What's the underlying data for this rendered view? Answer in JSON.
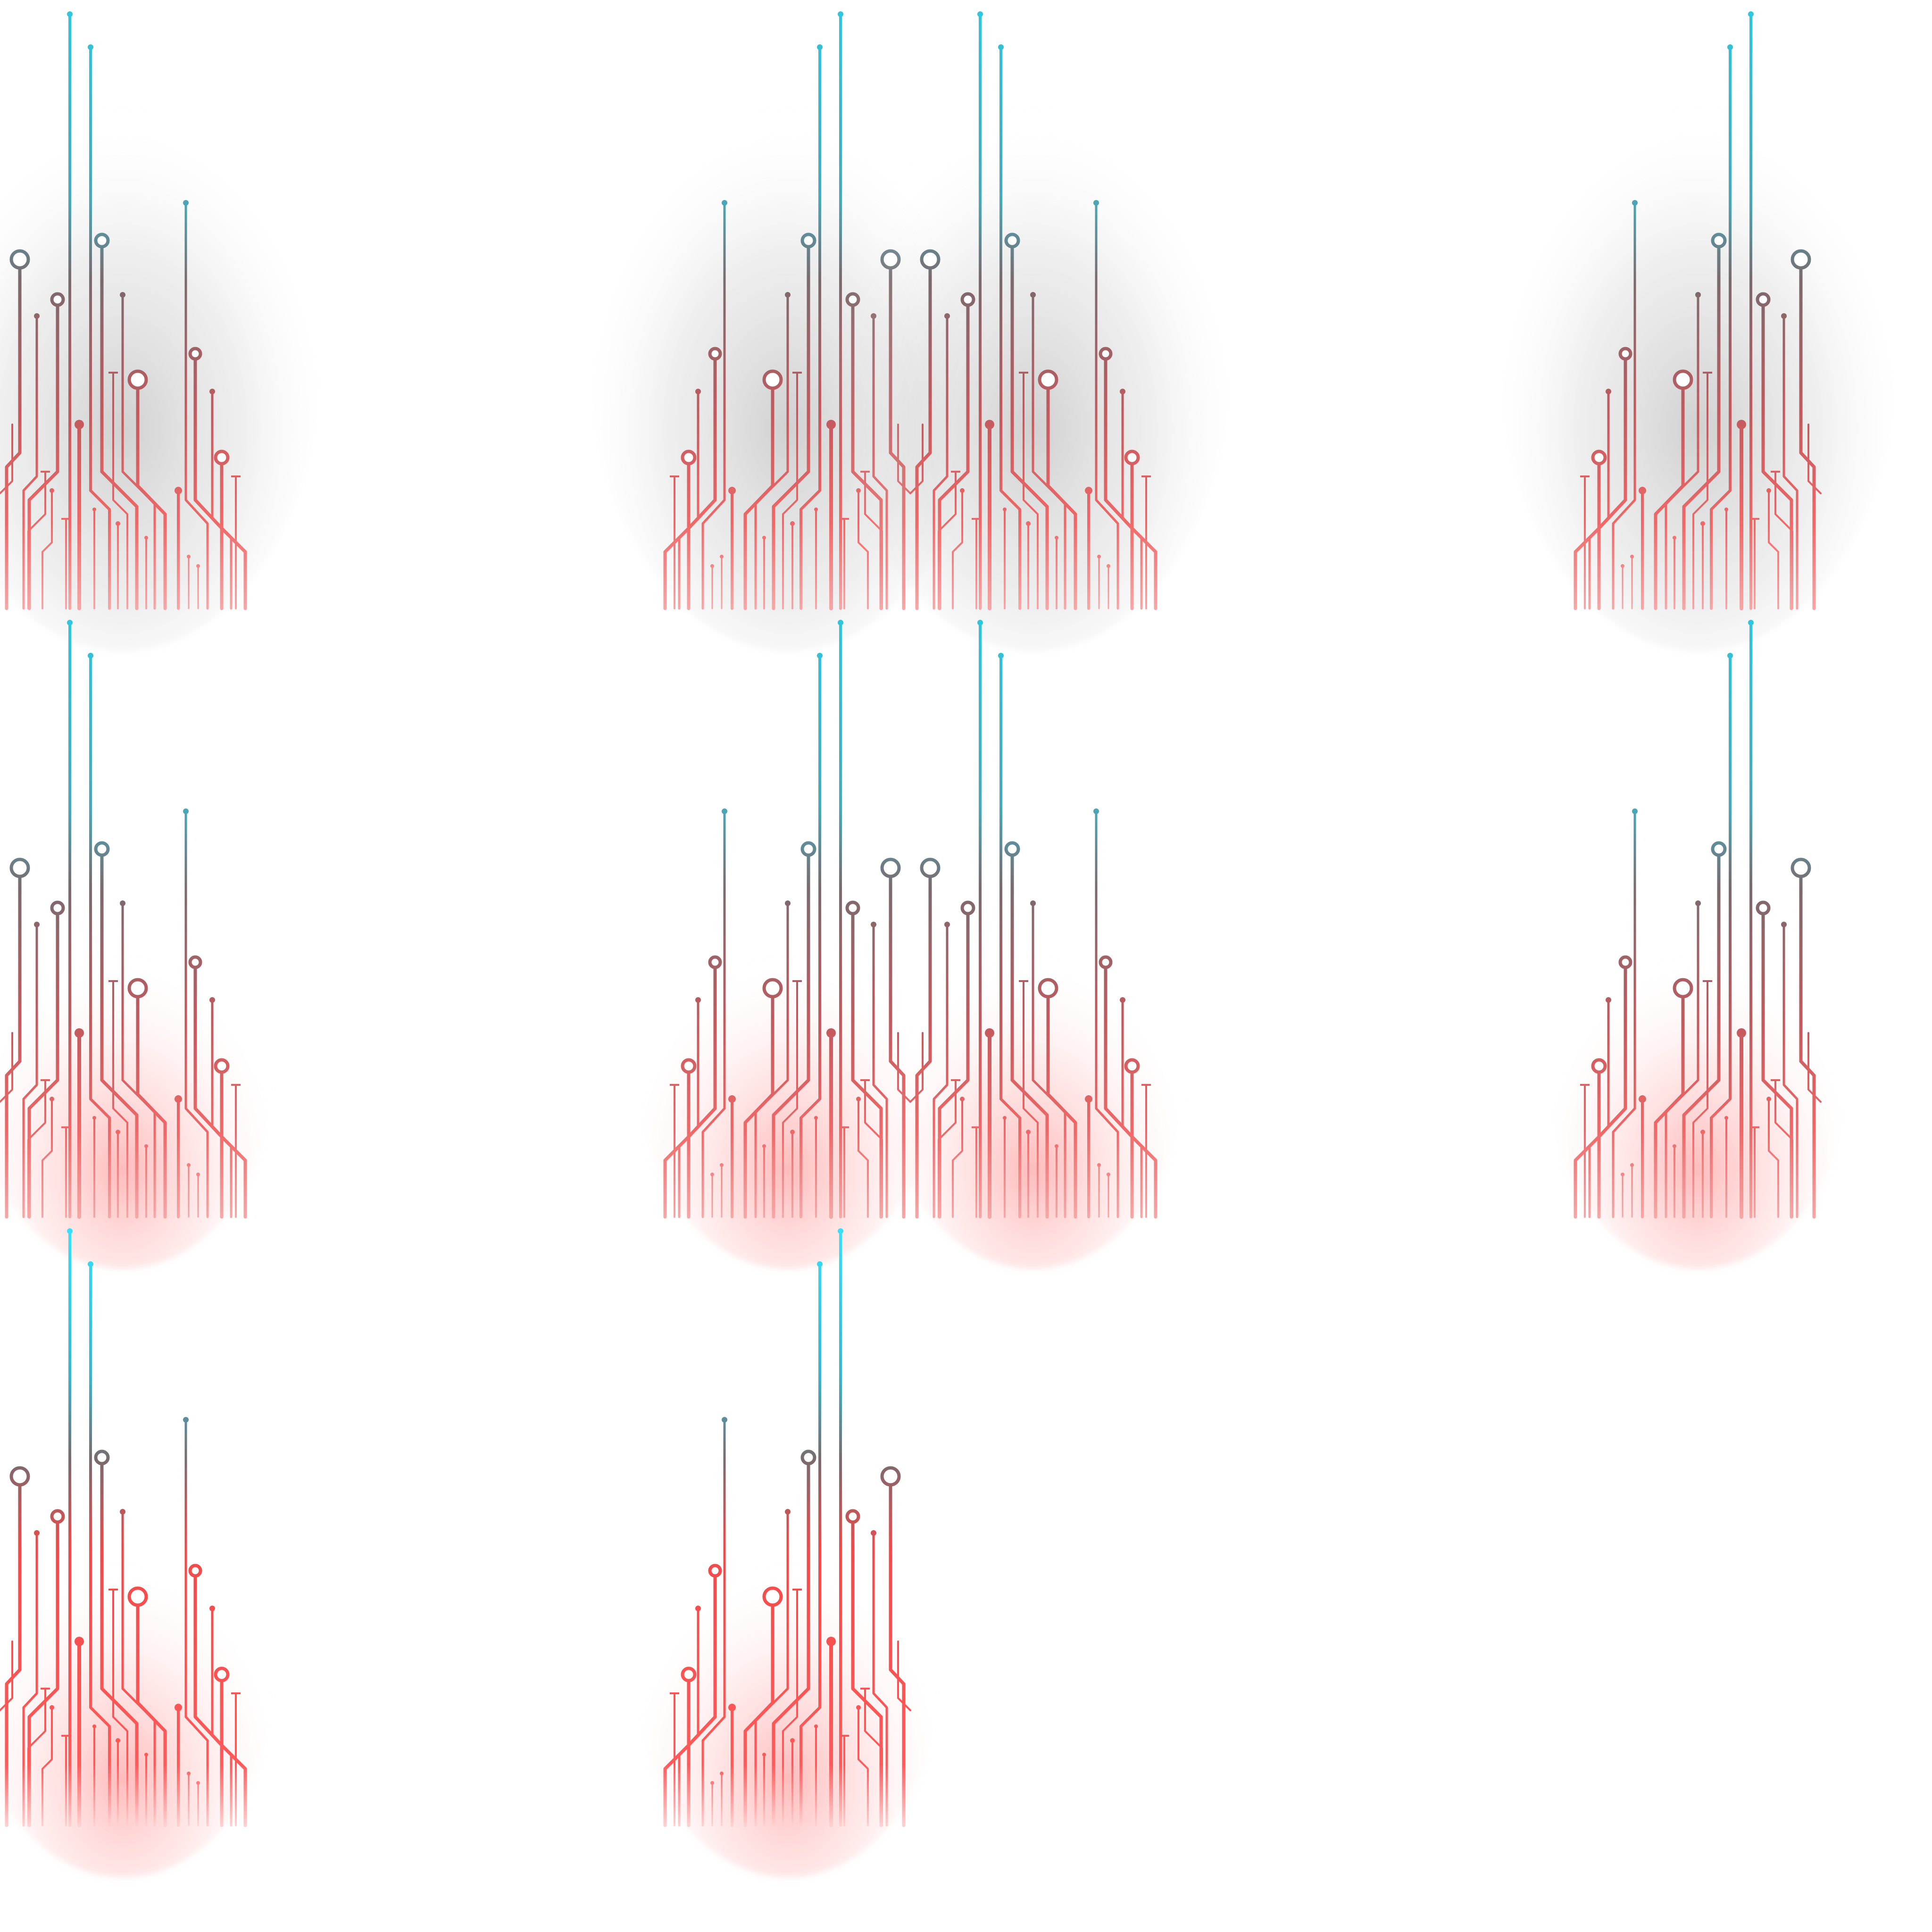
{
  "sheet": {
    "background": "#ffffff",
    "colors": {
      "tip_cyan": "#2ec8e0",
      "mid_gray": "#7a6a6e",
      "trace_red": "#e35a5a",
      "trace_light": "#f29090",
      "shadow": "#bdbdbd",
      "glow": "#ff4a4a"
    },
    "frames": [
      {
        "row": 0,
        "segments": [
          {
            "piece": "left",
            "mirror": false
          }
        ],
        "style": "shadow"
      },
      {
        "row": 0,
        "segments": [
          {
            "piece": "left",
            "mirror": true
          },
          {
            "piece": "left",
            "mirror": false
          }
        ],
        "style": "shadow"
      },
      {
        "row": 0,
        "segments": [
          {
            "piece": "left",
            "mirror": true
          }
        ],
        "style": "shadow"
      },
      {
        "row": 1,
        "segments": [
          {
            "piece": "left",
            "mirror": false
          }
        ],
        "style": "glow-low"
      },
      {
        "row": 1,
        "segments": [
          {
            "piece": "left",
            "mirror": true
          },
          {
            "piece": "left",
            "mirror": false
          }
        ],
        "style": "glow-low"
      },
      {
        "row": 1,
        "segments": [
          {
            "piece": "left",
            "mirror": true
          }
        ],
        "style": "glow-low"
      },
      {
        "row": 2,
        "segments": [
          {
            "piece": "left",
            "mirror": false
          }
        ],
        "style": "glow-high"
      },
      {
        "row": 2,
        "segments": [
          {
            "piece": "left",
            "mirror": true
          }
        ],
        "style": "glow-high"
      }
    ]
  }
}
